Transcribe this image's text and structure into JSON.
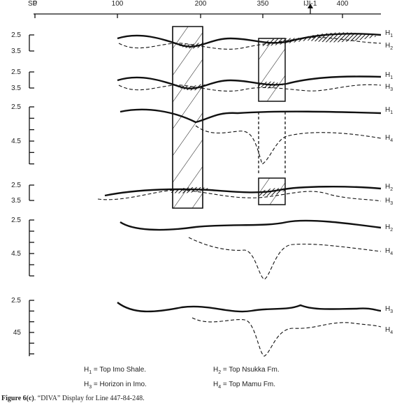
{
  "axis": {
    "title": "SP",
    "labels": [
      "0",
      "100",
      "200",
      "350",
      "400"
    ],
    "well": "IJI-1"
  },
  "panels": [
    {
      "scale": [
        "2.5",
        "3.5"
      ],
      "curves": [
        {
          "label": "H",
          "sub": "1"
        },
        {
          "label": "H",
          "sub": "2"
        }
      ]
    },
    {
      "scale": [
        "2.5",
        "3.5"
      ],
      "curves": [
        {
          "label": "H",
          "sub": "1"
        },
        {
          "label": "H",
          "sub": "3"
        }
      ]
    },
    {
      "scale": [
        "2.5",
        "4.5"
      ],
      "curves": [
        {
          "label": "H",
          "sub": "1"
        },
        {
          "label": "H",
          "sub": "4"
        }
      ]
    },
    {
      "scale": [
        "2.5",
        "3.5"
      ],
      "curves": [
        {
          "label": "H",
          "sub": "2"
        },
        {
          "label": "H",
          "sub": "3"
        }
      ]
    },
    {
      "scale": [
        "2.5",
        "4.5"
      ],
      "curves": [
        {
          "label": "H",
          "sub": "2"
        },
        {
          "label": "H",
          "sub": "4"
        }
      ]
    },
    {
      "scale": [
        "2.5",
        "45"
      ],
      "curves": [
        {
          "label": "H",
          "sub": "3"
        },
        {
          "label": "H",
          "sub": "4"
        }
      ]
    }
  ],
  "legend": [
    {
      "label": "H",
      "sub": "1",
      "text": " =  Top Imo Shale."
    },
    {
      "label": "H",
      "sub": "2",
      "text": " =  Top Nsukka  Fm."
    },
    {
      "label": "H",
      "sub": "3",
      "text": " =  Horizon in Imo."
    },
    {
      "label": "H",
      "sub": "4",
      "text": " =  Top Mamu Fm."
    }
  ],
  "caption": {
    "label": "Figure 6(c)",
    "text": ". “DIVA” Display for Line 447-84-248."
  }
}
